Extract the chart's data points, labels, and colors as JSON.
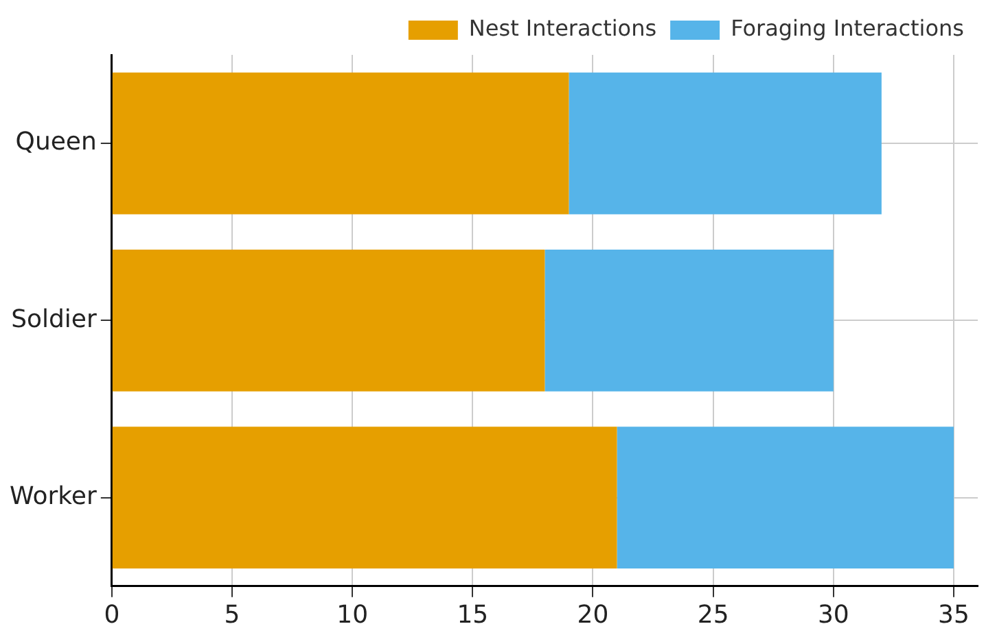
{
  "chart_data": {
    "type": "bar",
    "orientation": "horizontal",
    "stacked": true,
    "categories": [
      "Queen",
      "Soldier",
      "Worker"
    ],
    "series": [
      {
        "name": "Nest Interactions",
        "color": "#e69f00",
        "values": [
          19,
          18,
          21
        ]
      },
      {
        "name": "Foraging Interactions",
        "color": "#56b4e9",
        "values": [
          13,
          12,
          14
        ]
      }
    ],
    "xlim": [
      0,
      36
    ],
    "xticks": [
      0,
      5,
      10,
      15,
      20,
      25,
      30,
      35
    ],
    "grid": true,
    "legend": "top right"
  }
}
